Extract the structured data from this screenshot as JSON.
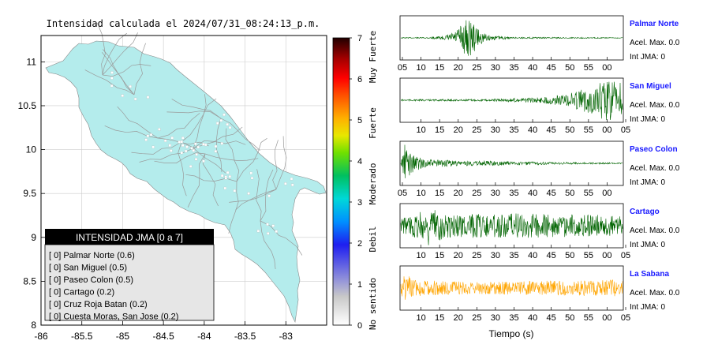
{
  "map": {
    "title": "Intensidad calculada el 2024/07/31_08:24:13_p.m.",
    "x_ticks": [
      "-86",
      "-85.5",
      "-85",
      "-84.5",
      "-84",
      "-83.5",
      "-83"
    ],
    "y_ticks": [
      "11",
      "10.5",
      "10",
      "9.5",
      "9",
      "8.5",
      "8"
    ],
    "xlim": [
      -86,
      -82.5
    ],
    "ylim": [
      8,
      11.3
    ],
    "land_color": "#b4ecec",
    "legend": {
      "header": "INTENSIDAD JMA [0 a 7]",
      "items": [
        "[ 0]  Palmar Norte (0.6)",
        "[ 0]  San Miguel (0.5)",
        "[ 0]  Paseo Colon (0.5)",
        "[ 0]  Cartago (0.2)",
        "[ 0]  Cruz Roja Batan (0.2)",
        "[ 0]  Cuesta Moras, San Jose (0.2)"
      ]
    }
  },
  "colorbar": {
    "ticks": [
      "0",
      "1",
      "2",
      "3",
      "4",
      "5",
      "6",
      "7"
    ],
    "labels": [
      "No sentido",
      "Debil",
      "Moderado",
      "Fuerte",
      "Muy Fuerte"
    ]
  },
  "chart_data": {
    "type": "line",
    "xlabel": "Tiempo (s)",
    "x_tick_labels": [
      "05",
      "10",
      "15",
      "20",
      "25",
      "30",
      "35",
      "40",
      "45",
      "50",
      "55",
      "00",
      "05"
    ],
    "panels": [
      {
        "name": "Palmar Norte",
        "acel": "Acel. Max. 0.0",
        "int": "Int JMA: 0",
        "color": "#006400",
        "tick_labels": [
          "05",
          "10",
          "15",
          "20",
          "25",
          "30",
          "35",
          "40",
          "45",
          "50",
          "55",
          "00"
        ],
        "ticks_start": 0,
        "envelope": [
          [
            0,
            0.02
          ],
          [
            0.12,
            0.03
          ],
          [
            0.2,
            0.1
          ],
          [
            0.25,
            0.35
          ],
          [
            0.3,
            1.0
          ],
          [
            0.33,
            0.7
          ],
          [
            0.36,
            0.3
          ],
          [
            0.4,
            0.12
          ],
          [
            0.5,
            0.04
          ],
          [
            1,
            0.02
          ]
        ]
      },
      {
        "name": "San Miguel",
        "acel": "Acel. Max. 0.0",
        "int": "Int JMA: 0",
        "color": "#006400",
        "tick_labels": [
          "10",
          "15",
          "20",
          "25",
          "30",
          "35",
          "40",
          "45",
          "50",
          "55",
          "00",
          "05"
        ],
        "ticks_start": 1,
        "envelope": [
          [
            0,
            0.04
          ],
          [
            0.4,
            0.05
          ],
          [
            0.6,
            0.12
          ],
          [
            0.75,
            0.3
          ],
          [
            0.85,
            0.65
          ],
          [
            0.93,
            1.0
          ],
          [
            1,
            0.85
          ]
        ]
      },
      {
        "name": "Paseo Colon",
        "acel": "Acel. Max. 0.0",
        "int": "Int JMA: 0",
        "color": "#006400",
        "tick_labels": [
          "05",
          "10",
          "15",
          "20",
          "25",
          "30",
          "35",
          "40",
          "45",
          "50",
          "55",
          "00"
        ],
        "ticks_start": 0,
        "envelope": [
          [
            0,
            0.15
          ],
          [
            0.02,
            1.0
          ],
          [
            0.05,
            0.5
          ],
          [
            0.1,
            0.2
          ],
          [
            0.3,
            0.12
          ],
          [
            0.5,
            0.1
          ],
          [
            0.7,
            0.06
          ],
          [
            1,
            0.03
          ]
        ]
      },
      {
        "name": "Cartago",
        "acel": "Acel. Max. 0.0",
        "int": "Int JMA: 0",
        "color": "#006400",
        "tick_labels": [
          "10",
          "15",
          "20",
          "25",
          "30",
          "35",
          "40",
          "45",
          "50",
          "55",
          "00",
          "05"
        ],
        "ticks_start": 1,
        "envelope": [
          [
            0,
            0.4
          ],
          [
            0.1,
            0.7
          ],
          [
            0.12,
            1.0
          ],
          [
            0.2,
            0.6
          ],
          [
            0.4,
            0.6
          ],
          [
            0.6,
            0.6
          ],
          [
            0.8,
            0.55
          ],
          [
            1,
            0.5
          ]
        ]
      },
      {
        "name": "La Sabana",
        "acel": "Acel. Max. 0.0",
        "int": "Int JMA: 0",
        "color": "#ffa500",
        "tick_labels": [
          "10",
          "15",
          "20",
          "25",
          "30",
          "35",
          "40",
          "45",
          "50",
          "55",
          "00",
          "05"
        ],
        "ticks_start": 1,
        "envelope": [
          [
            0,
            0.3
          ],
          [
            0.02,
            0.8
          ],
          [
            0.05,
            0.4
          ],
          [
            0.3,
            0.3
          ],
          [
            0.6,
            0.35
          ],
          [
            0.9,
            0.4
          ],
          [
            1,
            0.4
          ]
        ]
      }
    ]
  }
}
